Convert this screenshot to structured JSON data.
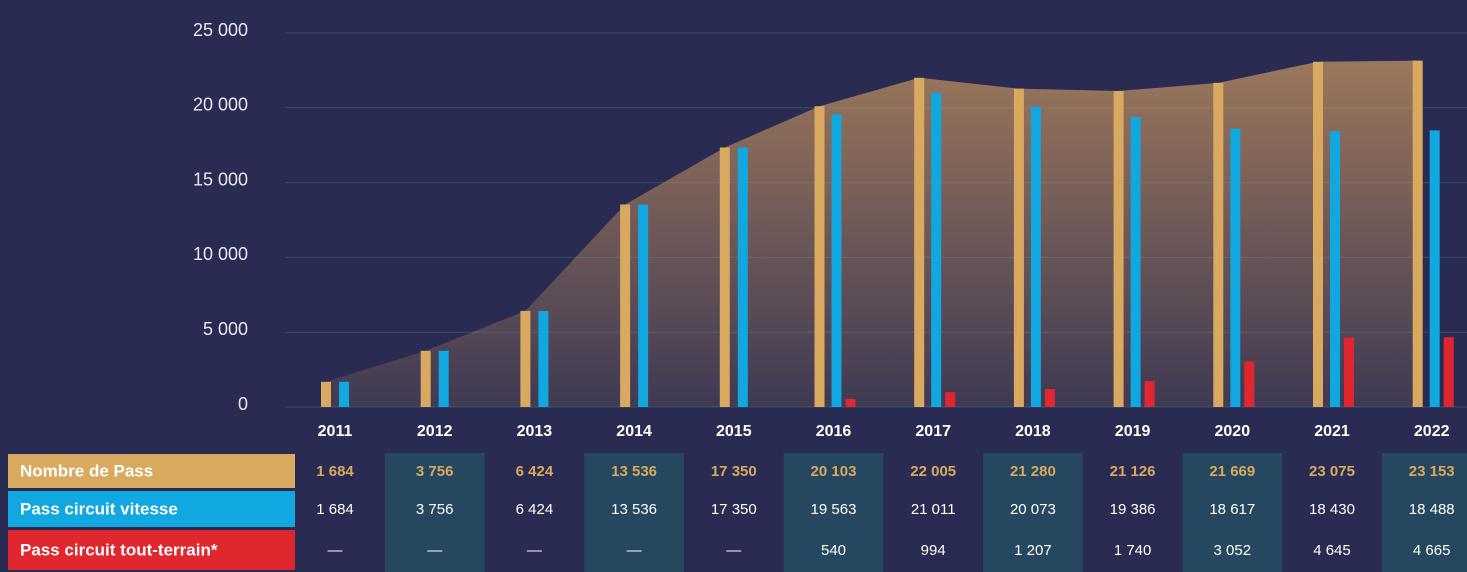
{
  "chart_data": {
    "type": "bar",
    "categories": [
      "2011",
      "2012",
      "2013",
      "2014",
      "2015",
      "2016",
      "2017",
      "2018",
      "2019",
      "2020",
      "2021",
      "2022"
    ],
    "series": [
      {
        "name": "Nombre de Pass",
        "color": "#d9a95f",
        "values": [
          1684,
          3756,
          6424,
          13536,
          17350,
          20103,
          22005,
          21280,
          21126,
          21669,
          23075,
          23153
        ],
        "value_labels": [
          "1 684",
          "3 756",
          "6 424",
          "13 536",
          "17 350",
          "20 103",
          "22 005",
          "21 280",
          "21 126",
          "21 669",
          "23 075",
          "23 153"
        ]
      },
      {
        "name": "Pass circuit vitesse",
        "color": "#11a7e0",
        "values": [
          1684,
          3756,
          6424,
          13536,
          17350,
          19563,
          21011,
          20073,
          19386,
          18617,
          18430,
          18488
        ],
        "value_labels": [
          "1 684",
          "3 756",
          "6 424",
          "13 536",
          "17 350",
          "19 563",
          "21 011",
          "20 073",
          "19 386",
          "18 617",
          "18 430",
          "18 488"
        ]
      },
      {
        "name": "Pass circuit tout-terrain*",
        "color": "#e0262f",
        "values": [
          null,
          null,
          null,
          null,
          null,
          540,
          994,
          1207,
          1740,
          3052,
          4645,
          4665
        ],
        "value_labels": [
          "—",
          "—",
          "—",
          "—",
          "—",
          "540",
          "994",
          "1 207",
          "1 740",
          "3 052",
          "4 645",
          "4 665"
        ]
      }
    ],
    "ylim": [
      0,
      25000
    ],
    "yticks": [
      0,
      {
        "value": 5000,
        "label": "5 000"
      },
      {
        "value": 10000,
        "label": "10 000"
      },
      {
        "value": 15000,
        "label": "15 000"
      },
      {
        "value": 20000,
        "label": "20 000"
      },
      {
        "value": 25000,
        "label": "25 000"
      }
    ],
    "grid": true
  }
}
